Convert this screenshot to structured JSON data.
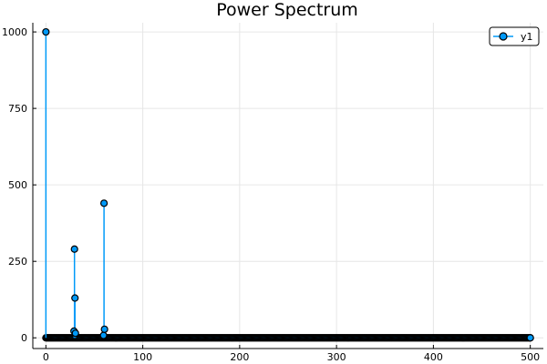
{
  "chart_data": {
    "type": "line",
    "title": "Power Spectrum",
    "xlabel": "",
    "ylabel": "",
    "xlim": [
      -13.5,
      513.5
    ],
    "ylim": [
      -35,
      1030
    ],
    "xticks": [
      0,
      100,
      200,
      300,
      400,
      500
    ],
    "yticks": [
      0,
      250,
      500,
      750,
      1000
    ],
    "grid": true,
    "legend_position": "top-right",
    "series": [
      {
        "name": "y1",
        "color": "#009af9",
        "marker": "circle",
        "style": "stem",
        "baseline": 0,
        "points": [
          {
            "x": 0,
            "y": 1000
          },
          {
            "x": 29,
            "y": 22
          },
          {
            "x": 29.5,
            "y": 290
          },
          {
            "x": 30,
            "y": 130
          },
          {
            "x": 30.5,
            "y": 15
          },
          {
            "x": 59.5,
            "y": 8
          },
          {
            "x": 60,
            "y": 440
          },
          {
            "x": 60.5,
            "y": 28
          },
          {
            "x": 500,
            "y": 0
          }
        ],
        "baseline_points_range": [
          0,
          500
        ]
      }
    ]
  }
}
